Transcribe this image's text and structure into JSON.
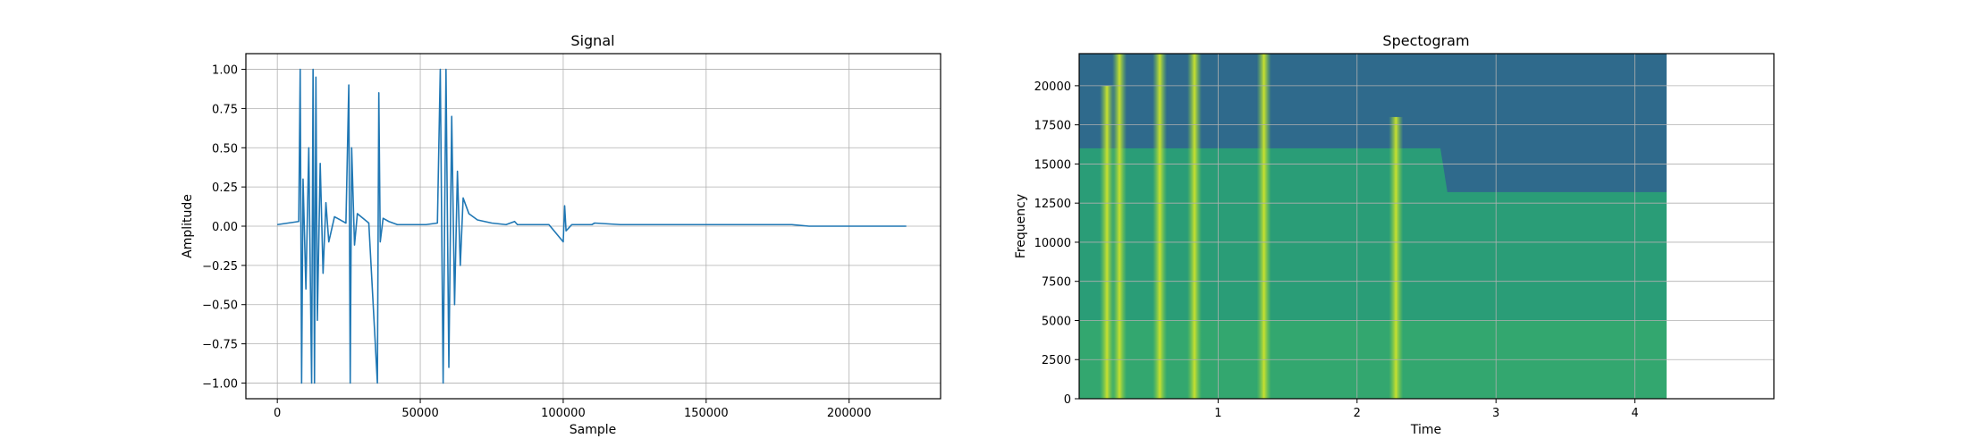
{
  "chart_data": [
    {
      "type": "line",
      "title": "Signal",
      "xlabel": "Sample",
      "ylabel": "Amplitude",
      "xlim": [
        -11000,
        232000
      ],
      "ylim": [
        -1.1,
        1.1
      ],
      "xticks": [
        0,
        50000,
        100000,
        150000,
        200000
      ],
      "yticks": [
        -1.0,
        -0.75,
        -0.5,
        -0.25,
        0.0,
        0.25,
        0.5,
        0.75,
        1.0
      ],
      "xtick_labels": [
        "0",
        "50000",
        "100000",
        "150000",
        "200000"
      ],
      "ytick_labels": [
        "−1.00",
        "−0.75",
        "−0.50",
        "−0.25",
        "0.00",
        "0.25",
        "0.50",
        "0.75",
        "1.00"
      ],
      "grid": true,
      "color": "#1f77b4",
      "series": [
        {
          "x": [
            0,
            7500,
            8000,
            8500,
            9000,
            10000,
            11000,
            12000,
            12500,
            13000,
            13500,
            14000,
            15000,
            16000,
            17000,
            18000,
            20000,
            22000,
            24000,
            25000,
            25500,
            26000,
            27000,
            28000,
            30000,
            32000,
            35000,
            35500,
            36000,
            37000,
            39000,
            42000,
            48000,
            52000,
            56000,
            57000,
            58000,
            59000,
            60000,
            61000,
            62000,
            63000,
            64000,
            65000,
            67000,
            70000,
            75000,
            80000,
            83000,
            84000,
            90000,
            95000,
            100000,
            100500,
            101000,
            103000,
            110000,
            111000,
            120000,
            140000,
            160000,
            180000,
            186000,
            200000,
            220000
          ],
          "y": [
            0.01,
            0.03,
            1.0,
            -1.0,
            0.3,
            -0.4,
            0.5,
            -1.0,
            1.0,
            -1.0,
            0.95,
            -0.6,
            0.4,
            -0.3,
            0.15,
            -0.1,
            0.06,
            0.04,
            0.02,
            0.9,
            -1.0,
            0.5,
            -0.12,
            0.08,
            0.05,
            0.02,
            -1.0,
            0.85,
            -0.1,
            0.05,
            0.03,
            0.01,
            0.01,
            0.01,
            0.02,
            1.0,
            -1.0,
            1.0,
            -0.9,
            0.7,
            -0.5,
            0.35,
            -0.25,
            0.18,
            0.08,
            0.04,
            0.02,
            0.01,
            0.03,
            0.01,
            0.01,
            0.01,
            -0.1,
            0.13,
            -0.03,
            0.01,
            0.01,
            0.02,
            0.01,
            0.01,
            0.01,
            0.01,
            0.0,
            0.0,
            0.0
          ]
        }
      ]
    },
    {
      "type": "heatmap",
      "title": "Spectogram",
      "xlabel": "Time",
      "ylabel": "Frequency",
      "xlim": [
        0,
        5.0
      ],
      "ylim": [
        0,
        22050
      ],
      "data_extent_x": [
        0,
        4.24
      ],
      "xticks": [
        1,
        2,
        3,
        4
      ],
      "yticks": [
        0,
        2500,
        5000,
        7500,
        10000,
        12500,
        15000,
        17500,
        20000
      ],
      "xtick_labels": [
        "1",
        "2",
        "3",
        "4"
      ],
      "ytick_labels": [
        "0",
        "2500",
        "5000",
        "7500",
        "10000",
        "12500",
        "15000",
        "17500",
        "20000"
      ],
      "grid": true,
      "colormap": "viridis",
      "colors": {
        "high_band": "#2f6a8c",
        "mid_band": "#2a9d77",
        "low_band": "#3aae6a",
        "onset": "#c9e02e",
        "onset_edge": "#7fcf4a"
      },
      "onsets": [
        {
          "t": 0.2,
          "f_max": 20000
        },
        {
          "t": 0.29,
          "f_max": 22050
        },
        {
          "t": 0.58,
          "f_max": 22050
        },
        {
          "t": 0.83,
          "f_max": 22050
        },
        {
          "t": 1.33,
          "f_max": 22050
        },
        {
          "t": 2.28,
          "f_max": 18000
        }
      ],
      "high_band_floor_hz": [
        {
          "t": 0.0,
          "f": 16000
        },
        {
          "t": 2.6,
          "f": 16000
        },
        {
          "t": 2.65,
          "f": 13200
        },
        {
          "t": 4.24,
          "f": 13200
        }
      ]
    }
  ]
}
